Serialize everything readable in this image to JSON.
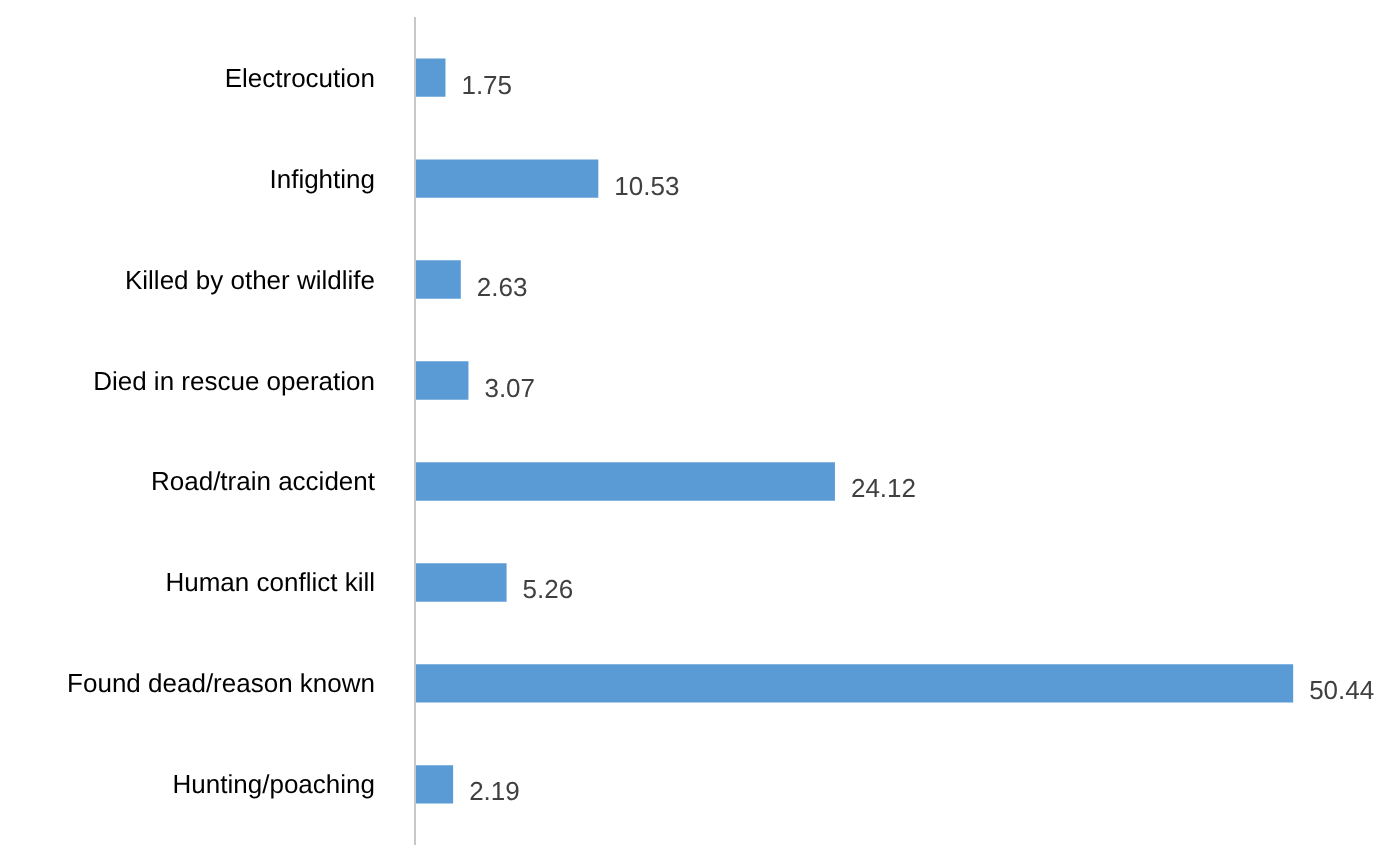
{
  "chart_data": {
    "type": "bar",
    "orientation": "horizontal",
    "categories": [
      "Electrocution",
      "Infighting",
      "Killed by other wildlife",
      "Died in rescue operation",
      "Road/train accident",
      "Human conflict kill",
      "Found dead/reason known",
      "Hunting/poaching"
    ],
    "values": [
      1.75,
      10.53,
      2.63,
      3.07,
      24.12,
      5.26,
      50.44,
      2.19
    ],
    "color": "#5b9bd5",
    "data_labels": true
  }
}
